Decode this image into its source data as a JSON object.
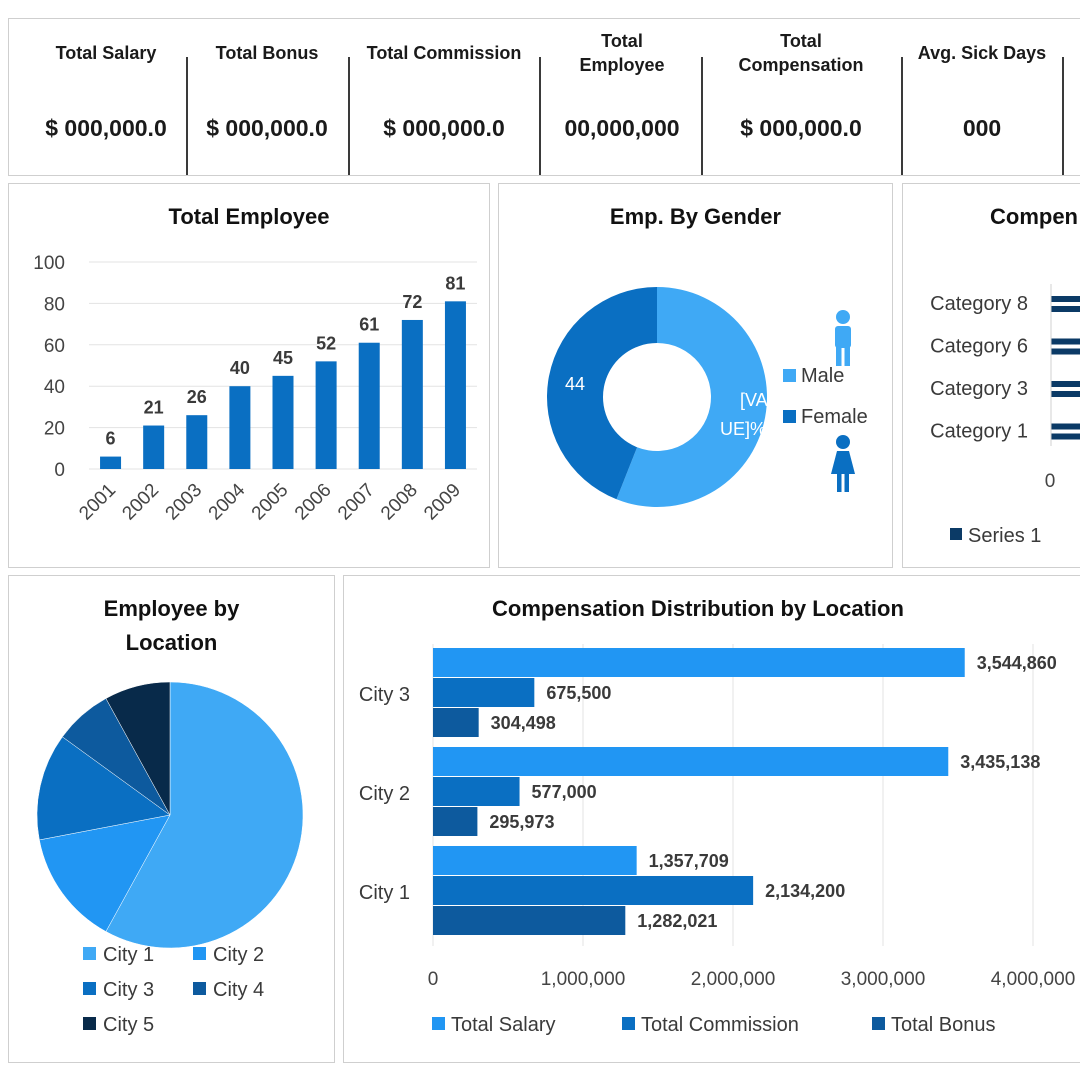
{
  "kpis": [
    {
      "label": "Total Salary",
      "value": "$ 000,000.0"
    },
    {
      "label": "Total Bonus",
      "value": "$ 000,000.0"
    },
    {
      "label": "Total Commission",
      "value": "$ 000,000.0"
    },
    {
      "label": "Total Employee",
      "value": "00,000,000"
    },
    {
      "label": "Total Compensation",
      "value": "$ 000,000.0"
    },
    {
      "label": "Avg. Sick Days",
      "value": "000"
    }
  ],
  "colors": {
    "light_blue": "#3fa9f5",
    "mid_blue": "#2196f3",
    "blue": "#0a6fc2",
    "dark_blue": "#0d5a9e",
    "navy": "#0b3a66",
    "darkest": "#082a4a"
  },
  "chart_data": [
    {
      "id": "total-employee",
      "type": "bar",
      "title": "Total Employee",
      "categories": [
        "2001",
        "2002",
        "2003",
        "2004",
        "2005",
        "2006",
        "2007",
        "2008",
        "2009"
      ],
      "values": [
        6,
        21,
        26,
        40,
        45,
        52,
        61,
        72,
        81
      ],
      "ylim": [
        0,
        100
      ],
      "yticks": [
        "0",
        "20",
        "40",
        "60",
        "80",
        "100"
      ],
      "grid": true
    },
    {
      "id": "emp-by-gender",
      "type": "pie",
      "title": "Emp. By Gender",
      "labels": [
        "Male",
        "Female"
      ],
      "values": [
        56,
        44
      ],
      "slice_labels": [
        "[VALUE]%",
        "44"
      ],
      "legend": "right"
    },
    {
      "id": "compensation-partial",
      "type": "bar",
      "title": "Compen",
      "categories": [
        "Category 1",
        "Category 3",
        "Category 6",
        "Category 8"
      ],
      "xticks": [
        "0"
      ],
      "legend_items": [
        "Series 1"
      ]
    },
    {
      "id": "employee-by-location",
      "type": "pie",
      "title": "Employee by Location",
      "labels": [
        "City 1",
        "City 2",
        "City 3",
        "City 4",
        "City 5"
      ],
      "values": [
        58,
        14,
        13,
        7,
        8
      ],
      "legend": "bottom"
    },
    {
      "id": "comp-distribution-location",
      "type": "bar",
      "orientation": "horizontal",
      "title": "Compensation Distribution by Location",
      "categories": [
        "City 1",
        "City 2",
        "City 3"
      ],
      "series": [
        {
          "name": "Total Salary",
          "values": [
            1357709,
            3435138,
            3544860
          ],
          "labels": [
            "1,357,709",
            "3,435,138",
            "3,544,860"
          ]
        },
        {
          "name": "Total Commission",
          "values": [
            2134200,
            577000,
            675500
          ],
          "labels": [
            "2,134,200",
            "577,000",
            "675,500"
          ]
        },
        {
          "name": "Total Bonus",
          "values": [
            1282021,
            295973,
            304498
          ],
          "labels": [
            "1,282,021",
            "295,973",
            "304,498"
          ]
        }
      ],
      "xlim": [
        0,
        4000000
      ],
      "xticks": [
        "0",
        "1,000,000",
        "2,000,000",
        "3,000,000",
        "4,000,000"
      ],
      "grid": true,
      "legend": "bottom"
    }
  ]
}
